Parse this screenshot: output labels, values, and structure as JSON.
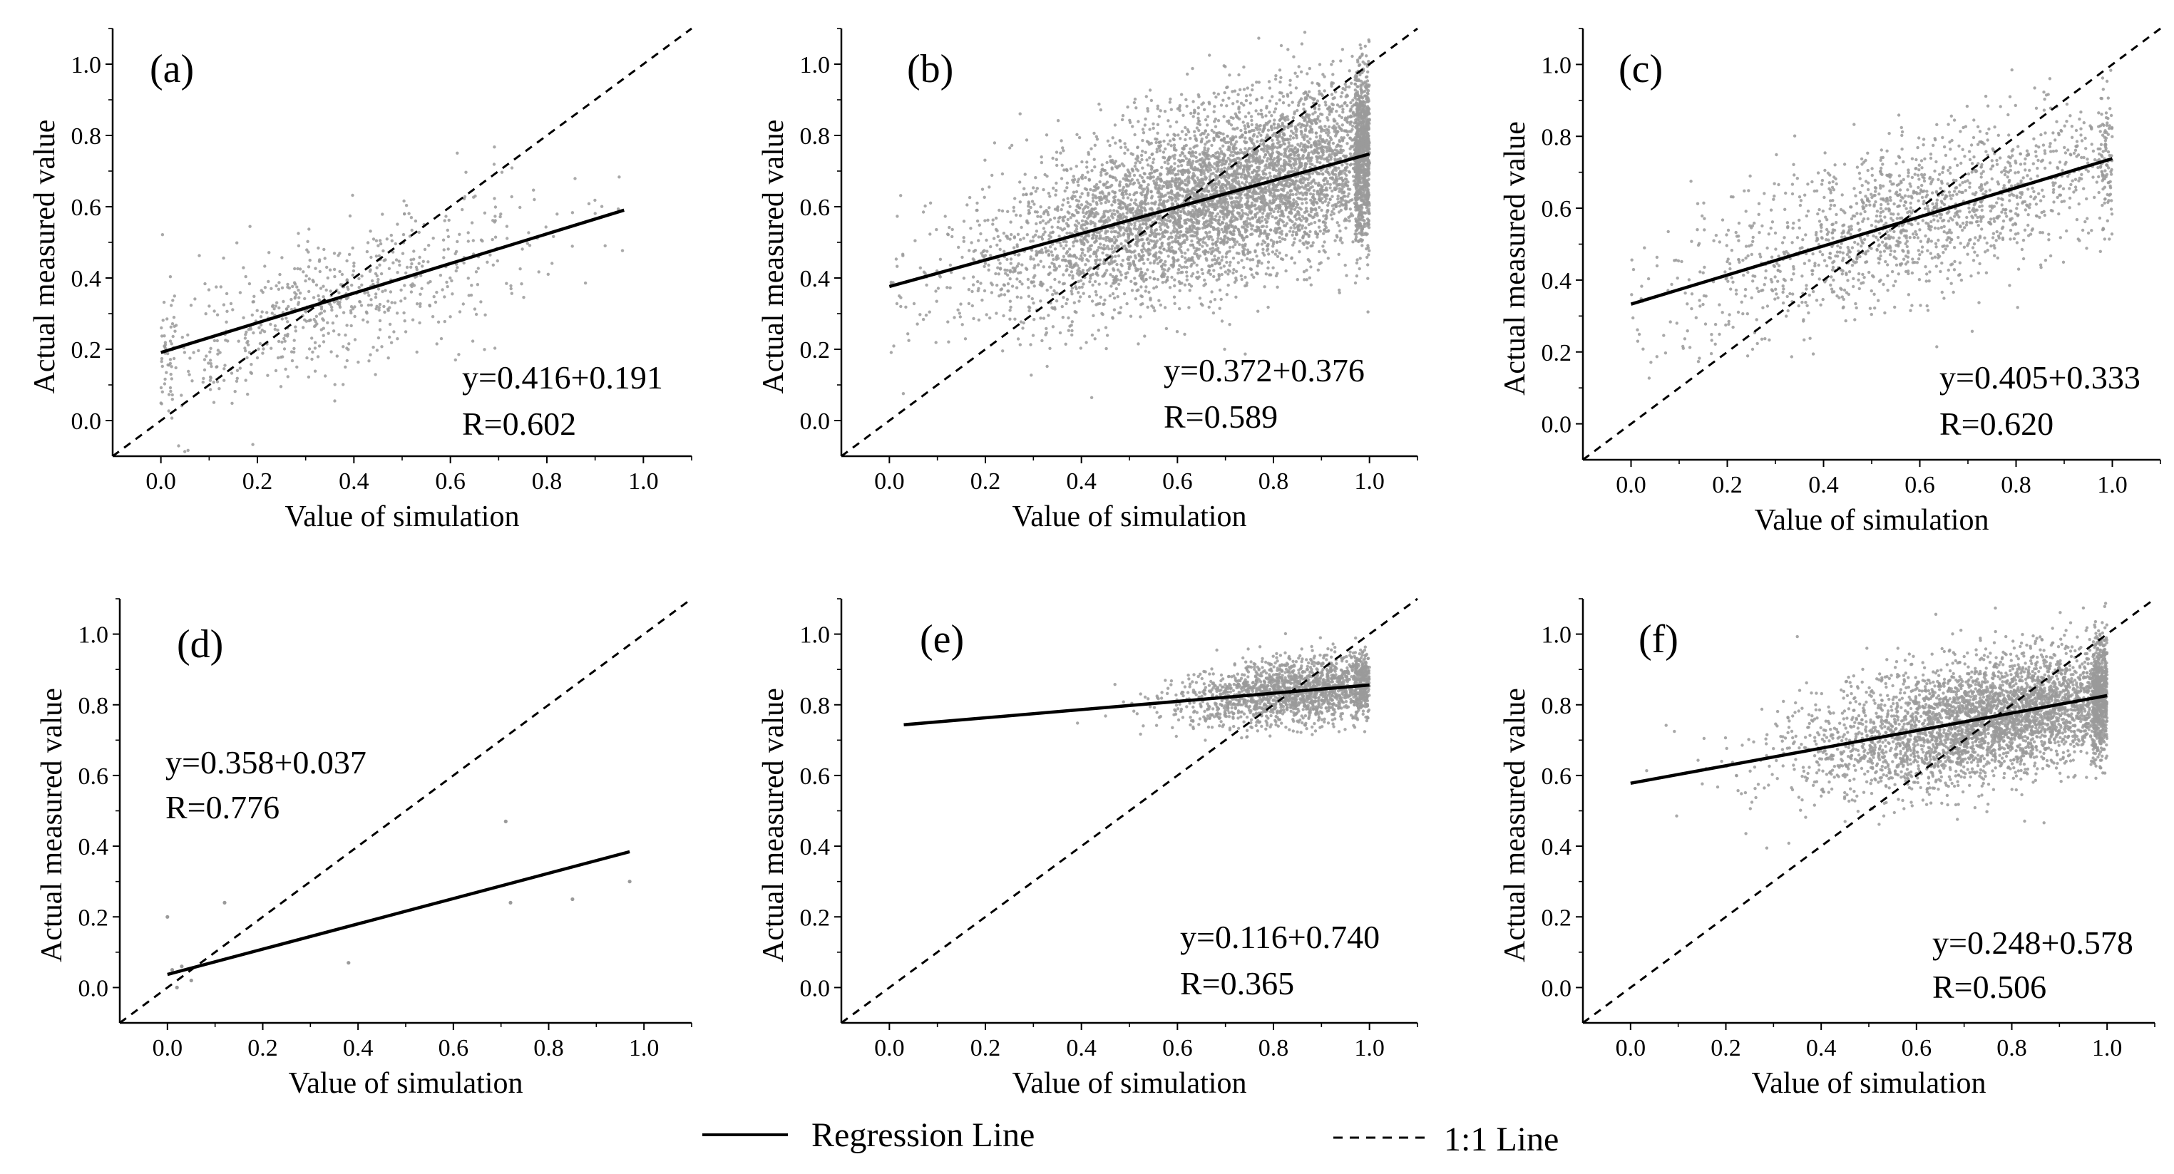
{
  "figure": {
    "legend": {
      "regression_label": "Regression Line",
      "oneone_label": "1:1 Line",
      "placement": "bottom-center"
    }
  },
  "chart_data": [
    {
      "type": "scatter",
      "panel": "(a)",
      "xlabel": "Value of simulation",
      "ylabel": "Actual measured value",
      "xticks": [
        "0.0",
        "0.2",
        "0.4",
        "0.6",
        "0.8",
        "1.0"
      ],
      "yticks": [
        "0.0",
        "0.2",
        "0.4",
        "0.6",
        "0.8",
        "1.0"
      ],
      "xlim": [
        -0.1,
        1.1
      ],
      "ylim": [
        -0.1,
        1.1
      ],
      "regression": {
        "slope": 0.416,
        "intercept": 0.191,
        "x_range": [
          0.0,
          0.96
        ]
      },
      "equation": "y=0.416+0.191",
      "r_text": "R=0.602",
      "point_cloud": {
        "count": 700,
        "x_range": [
          0.0,
          0.96
        ],
        "x_center": 0.35,
        "x_spread": 0.22,
        "noise": 0.1
      },
      "colors": {
        "points": "#9a9a9a",
        "line": "#000000"
      }
    },
    {
      "type": "scatter",
      "panel": "(b)",
      "xlabel": "Value of simulation",
      "ylabel": "Actual measured value",
      "xticks": [
        "0.0",
        "0.2",
        "0.4",
        "0.6",
        "0.8",
        "1.0"
      ],
      "yticks": [
        "0.0",
        "0.2",
        "0.4",
        "0.6",
        "0.8",
        "1.0"
      ],
      "xlim": [
        -0.1,
        1.1
      ],
      "ylim": [
        -0.1,
        1.1
      ],
      "regression": {
        "slope": 0.372,
        "intercept": 0.376,
        "x_range": [
          0.0,
          1.0
        ]
      },
      "equation": "y=0.372+0.376",
      "r_text": "R=0.589",
      "point_cloud": {
        "count": 6000,
        "x_range": [
          0.0,
          1.0
        ],
        "x_center": 0.72,
        "x_spread": 0.25,
        "noise": 0.12
      },
      "colors": {
        "points": "#9a9a9a",
        "line": "#000000"
      }
    },
    {
      "type": "scatter",
      "panel": "(c)",
      "xlabel": "Value of simulation",
      "ylabel": "Actual measured value",
      "xticks": [
        "0.0",
        "0.2",
        "0.4",
        "0.6",
        "0.8",
        "1.0"
      ],
      "yticks": [
        "0.0",
        "0.2",
        "0.4",
        "0.6",
        "0.8",
        "1.0"
      ],
      "xlim": [
        -0.1,
        1.1
      ],
      "ylim": [
        -0.1,
        1.1
      ],
      "regression": {
        "slope": 0.405,
        "intercept": 0.333,
        "x_range": [
          0.0,
          1.0
        ]
      },
      "equation": "y=0.405+0.333",
      "r_text": "R=0.620",
      "point_cloud": {
        "count": 1600,
        "x_range": [
          0.0,
          1.0
        ],
        "x_center": 0.6,
        "x_spread": 0.25,
        "noise": 0.11
      },
      "colors": {
        "points": "#9a9a9a",
        "line": "#000000"
      }
    },
    {
      "type": "scatter",
      "panel": "(d)",
      "xlabel": "Value of simulation",
      "ylabel": "Actual measured value",
      "xticks": [
        "0.0",
        "0.2",
        "0.4",
        "0.6",
        "0.8",
        "1.0"
      ],
      "yticks": [
        "0.0",
        "0.2",
        "0.4",
        "0.6",
        "0.8",
        "1.0"
      ],
      "xlim": [
        -0.1,
        1.1
      ],
      "ylim": [
        -0.1,
        1.1
      ],
      "regression": {
        "slope": 0.358,
        "intercept": 0.037,
        "x_range": [
          0.0,
          0.97
        ]
      },
      "equation": "y=0.358+0.037",
      "r_text": "R=0.776",
      "points": [
        [
          0.0,
          0.2
        ],
        [
          0.01,
          0.05
        ],
        [
          0.02,
          0.0
        ],
        [
          0.03,
          0.06
        ],
        [
          0.05,
          0.02
        ],
        [
          0.12,
          0.24
        ],
        [
          0.38,
          0.07
        ],
        [
          0.71,
          0.47
        ],
        [
          0.72,
          0.24
        ],
        [
          0.85,
          0.25
        ],
        [
          0.97,
          0.3
        ]
      ],
      "colors": {
        "points": "#9a9a9a",
        "line": "#000000"
      }
    },
    {
      "type": "scatter",
      "panel": "(e)",
      "xlabel": "Value of simulation",
      "ylabel": "Actual measured value",
      "xticks": [
        "0.0",
        "0.2",
        "0.4",
        "0.6",
        "0.8",
        "1.0"
      ],
      "yticks": [
        "0.0",
        "0.2",
        "0.4",
        "0.6",
        "0.8",
        "1.0"
      ],
      "xlim": [
        -0.1,
        1.1
      ],
      "ylim": [
        -0.1,
        1.1
      ],
      "regression": {
        "slope": 0.116,
        "intercept": 0.74,
        "x_range": [
          0.03,
          1.0
        ]
      },
      "equation": "y=0.116+0.740",
      "r_text": "R=0.365",
      "point_cloud": {
        "count": 1900,
        "x_range": [
          0.03,
          1.0
        ],
        "x_center": 0.85,
        "x_spread": 0.12,
        "noise": 0.045
      },
      "colors": {
        "points": "#9a9a9a",
        "line": "#000000"
      }
    },
    {
      "type": "scatter",
      "panel": "(f)",
      "xlabel": "Value of simulation",
      "ylabel": "Actual measured value",
      "xticks": [
        "0.0",
        "0.2",
        "0.4",
        "0.6",
        "0.8",
        "1.0"
      ],
      "yticks": [
        "0.0",
        "0.2",
        "0.4",
        "0.6",
        "0.8",
        "1.0"
      ],
      "xlim": [
        -0.1,
        1.1
      ],
      "ylim": [
        -0.1,
        1.1
      ],
      "regression": {
        "slope": 0.248,
        "intercept": 0.578,
        "x_range": [
          0.0,
          1.0
        ]
      },
      "equation": "y=0.248+0.578",
      "r_text": "R=0.506",
      "point_cloud": {
        "count": 4200,
        "x_range": [
          0.0,
          1.0
        ],
        "x_center": 0.78,
        "x_spread": 0.2,
        "noise": 0.085
      },
      "colors": {
        "points": "#9a9a9a",
        "line": "#000000"
      }
    }
  ]
}
